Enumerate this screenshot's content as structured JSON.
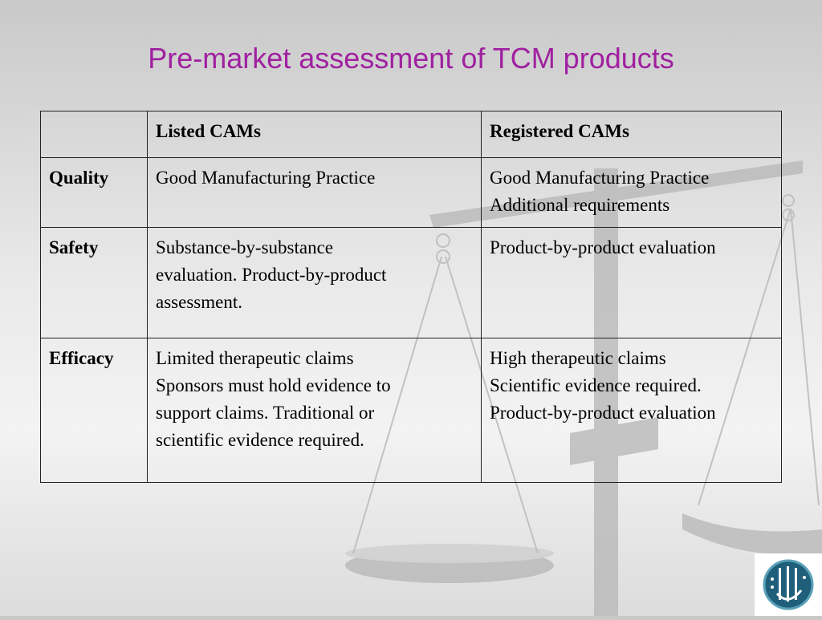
{
  "title": "Pre-market assessment of TCM products",
  "table": {
    "headers": [
      "",
      "Listed CAMs",
      "Registered CAMs"
    ],
    "rows": [
      {
        "label": "Quality",
        "listed": [
          "Good Manufacturing Practice"
        ],
        "registered": [
          "Good Manufacturing Practice",
          "Additional requirements"
        ]
      },
      {
        "label": "Safety",
        "listed": [
          "Substance-by-substance",
          "evaluation. Product-by-product",
          "assessment."
        ],
        "registered": [
          "Product-by-product evaluation"
        ]
      },
      {
        "label": "Efficacy",
        "listed": [
          "Limited therapeutic claims",
          "Sponsors must hold evidence to",
          "support claims. Traditional or",
          "scientific evidence required."
        ],
        "registered": [
          "High therapeutic claims",
          "Scientific evidence required.",
          "Product-by-product evaluation"
        ]
      }
    ]
  },
  "colors": {
    "title": "#a020a0",
    "border": "#222222"
  },
  "icons": {
    "background": "scales-of-justice-watermark",
    "logo": "institution-logo-icon"
  }
}
